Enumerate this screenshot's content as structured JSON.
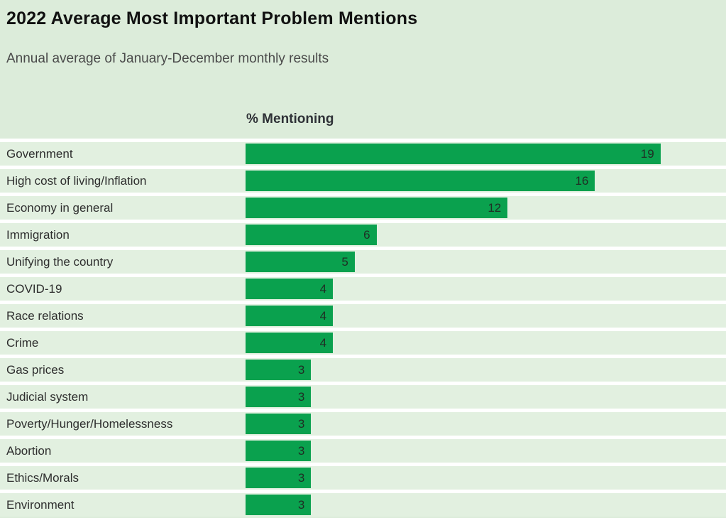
{
  "page": {
    "background_color": "#dcecda",
    "row_band_color": "#e2f0e0",
    "separator_color": "#ffffff"
  },
  "header": {
    "title": "2022 Average Most Important Problem Mentions",
    "subtitle": "Annual average of January-December monthly results"
  },
  "chart_data": {
    "type": "bar",
    "orientation": "horizontal",
    "title": "2022 Average Most Important Problem Mentions",
    "subtitle": "Annual average of January-December monthly results",
    "column_header": "% Mentioning",
    "xlabel": "% Mentioning",
    "ylabel": "",
    "xlim": [
      0,
      22
    ],
    "grid": false,
    "legend": false,
    "bar_color": "#0aa14e",
    "value_labels_inside_bars": true,
    "categories": [
      "Government",
      "High cost of living/Inflation",
      "Economy in general",
      "Immigration",
      "Unifying the country",
      "COVID-19",
      "Race relations",
      "Crime",
      "Gas prices",
      "Judicial system",
      "Poverty/Hunger/Homelessness",
      "Abortion",
      "Ethics/Morals",
      "Environment"
    ],
    "values": [
      19,
      16,
      12,
      6,
      5,
      4,
      4,
      4,
      3,
      3,
      3,
      3,
      3,
      3
    ]
  }
}
